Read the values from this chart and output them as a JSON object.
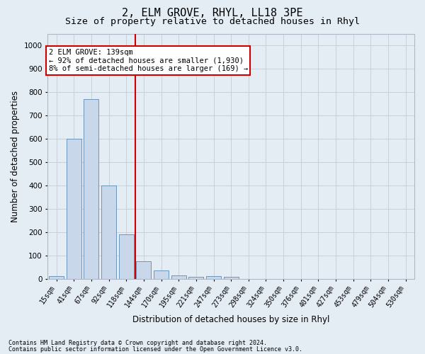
{
  "title": "2, ELM GROVE, RHYL, LL18 3PE",
  "subtitle": "Size of property relative to detached houses in Rhyl",
  "xlabel": "Distribution of detached houses by size in Rhyl",
  "ylabel": "Number of detached properties",
  "categories": [
    "15sqm",
    "41sqm",
    "67sqm",
    "92sqm",
    "118sqm",
    "144sqm",
    "170sqm",
    "195sqm",
    "221sqm",
    "247sqm",
    "273sqm",
    "298sqm",
    "324sqm",
    "350sqm",
    "376sqm",
    "401sqm",
    "427sqm",
    "453sqm",
    "479sqm",
    "504sqm",
    "530sqm"
  ],
  "values": [
    12,
    600,
    770,
    400,
    190,
    75,
    35,
    15,
    10,
    13,
    8,
    0,
    0,
    0,
    0,
    0,
    0,
    0,
    0,
    0,
    0
  ],
  "bar_color": "#c8d8ea",
  "bar_edgecolor": "#5a8ab5",
  "grid_color": "#c8d0dc",
  "bg_color": "#e4ecf4",
  "vline_color": "#cc0000",
  "annotation_box_text": "2 ELM GROVE: 139sqm\n← 92% of detached houses are smaller (1,930)\n8% of semi-detached houses are larger (169) →",
  "annotation_box_color": "#cc0000",
  "annotation_box_bg": "#ffffff",
  "footer_line1": "Contains HM Land Registry data © Crown copyright and database right 2024.",
  "footer_line2": "Contains public sector information licensed under the Open Government Licence v3.0.",
  "ylim": [
    0,
    1050
  ],
  "yticks": [
    0,
    100,
    200,
    300,
    400,
    500,
    600,
    700,
    800,
    900,
    1000
  ],
  "title_fontsize": 11,
  "subtitle_fontsize": 9.5,
  "tick_fontsize": 7,
  "label_fontsize": 8.5,
  "annotation_fontsize": 7.5,
  "footer_fontsize": 6
}
